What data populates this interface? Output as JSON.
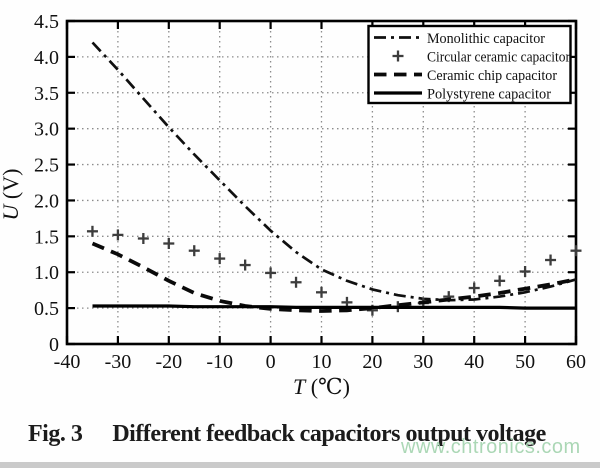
{
  "figure": {
    "caption_label": "Fig. 3",
    "caption_text": "Different feedback capacitors output voltage",
    "watermark": "www.chtronics.com",
    "watermark_color": "#a7d5b2"
  },
  "chart_data": {
    "type": "line",
    "title": "",
    "xlabel": "T (℃)",
    "ylabel": "U (V)",
    "xlim": [
      -40,
      60
    ],
    "ylim": [
      0,
      4.5
    ],
    "x_ticks": [
      -40,
      -30,
      -20,
      -10,
      0,
      10,
      20,
      30,
      40,
      50,
      60
    ],
    "x_tick_labels": [
      "-40",
      "-30",
      "-20",
      "-10",
      "0",
      "10",
      "20",
      "30",
      "40",
      "50",
      "60"
    ],
    "y_ticks": [
      0,
      0.5,
      1.0,
      1.5,
      2.0,
      2.5,
      3.0,
      3.5,
      4.0,
      4.5
    ],
    "y_tick_labels": [
      "0",
      "0.5",
      "1.0",
      "1.5",
      "2.0",
      "2.5",
      "3.0",
      "3.5",
      "4.0",
      "4.5"
    ],
    "grid": "dotted",
    "legend_position": "top-right",
    "x": [
      -35,
      -30,
      -25,
      -20,
      -15,
      -10,
      -5,
      0,
      5,
      10,
      15,
      20,
      25,
      30,
      35,
      40,
      45,
      50,
      55,
      60
    ],
    "series": [
      {
        "name": "Monolithic capacitor",
        "style": "dash-dot",
        "marker": null,
        "values": [
          4.2,
          3.82,
          3.42,
          3.02,
          2.64,
          2.28,
          1.92,
          1.58,
          1.28,
          1.04,
          0.88,
          0.76,
          0.68,
          0.63,
          0.61,
          0.62,
          0.66,
          0.72,
          0.8,
          0.9
        ]
      },
      {
        "name": "Circular ceramic capacitor",
        "style": "none",
        "marker": "plus",
        "values": [
          1.57,
          1.52,
          1.47,
          1.4,
          1.3,
          1.19,
          1.1,
          0.99,
          0.86,
          0.72,
          0.58,
          0.47,
          0.52,
          0.57,
          0.66,
          0.78,
          0.88,
          1.01,
          1.17,
          1.3
        ]
      },
      {
        "name": "Ceramic chip capacitor",
        "style": "dashed",
        "marker": null,
        "values": [
          1.4,
          1.25,
          1.07,
          0.88,
          0.71,
          0.6,
          0.53,
          0.49,
          0.47,
          0.46,
          0.47,
          0.5,
          0.54,
          0.58,
          0.62,
          0.66,
          0.71,
          0.77,
          0.83,
          0.9
        ]
      },
      {
        "name": "Polystyrene capacitor",
        "style": "solid",
        "marker": null,
        "values": [
          0.53,
          0.53,
          0.53,
          0.53,
          0.52,
          0.52,
          0.52,
          0.52,
          0.51,
          0.51,
          0.51,
          0.51,
          0.51,
          0.51,
          0.51,
          0.51,
          0.51,
          0.5,
          0.5,
          0.5
        ]
      }
    ]
  }
}
